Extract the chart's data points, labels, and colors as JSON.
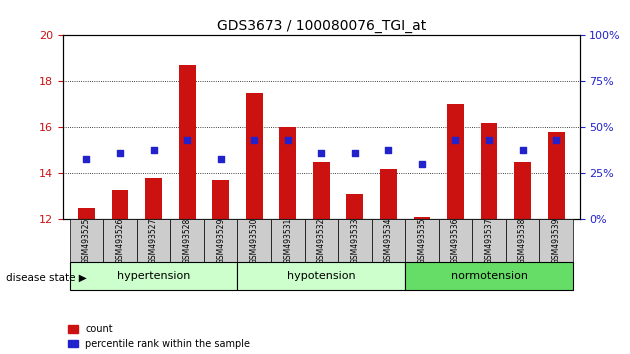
{
  "title": "GDS3673 / 100080076_TGI_at",
  "samples": [
    "GSM493525",
    "GSM493526",
    "GSM493527",
    "GSM493528",
    "GSM493529",
    "GSM493530",
    "GSM493531",
    "GSM493532",
    "GSM493533",
    "GSM493534",
    "GSM493535",
    "GSM493536",
    "GSM493537",
    "GSM493538",
    "GSM493539"
  ],
  "count_values": [
    12.5,
    13.3,
    13.8,
    18.7,
    13.7,
    17.5,
    16.0,
    14.5,
    13.1,
    14.2,
    12.1,
    17.0,
    16.2,
    14.5,
    15.8
  ],
  "percentile_values": [
    33,
    36,
    38,
    43,
    33,
    43,
    43,
    36,
    36,
    38,
    30,
    43,
    43,
    38,
    43
  ],
  "count_base": 12.0,
  "ylim_left": [
    12,
    20
  ],
  "ylim_right": [
    0,
    100
  ],
  "yticks_left": [
    12,
    14,
    16,
    18,
    20
  ],
  "yticks_right": [
    0,
    25,
    50,
    75,
    100
  ],
  "groups": [
    {
      "label": "hypertension",
      "start": 0,
      "end": 5
    },
    {
      "label": "hypotension",
      "start": 5,
      "end": 10
    },
    {
      "label": "normotension",
      "start": 10,
      "end": 15
    }
  ],
  "group_colors": [
    "#ccffcc",
    "#ccffcc",
    "#66dd66"
  ],
  "bar_color": "#cc1111",
  "dot_color": "#2222cc",
  "bar_width": 0.5,
  "tick_label_color_left": "#cc1111",
  "tick_label_color_right": "#2222cc",
  "grid_color": "#000000",
  "sample_bg_color": "#cccccc",
  "hgrid_ticks": [
    14,
    16,
    18
  ]
}
